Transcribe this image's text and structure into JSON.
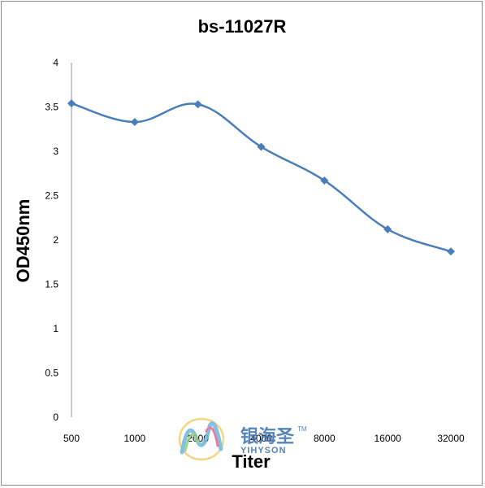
{
  "chart_data": {
    "type": "line",
    "title": "bs-11027R",
    "xlabel": "Titer",
    "ylabel": "OD450nm",
    "categories": [
      "500",
      "1000",
      "2000",
      "4000",
      "8000",
      "16000",
      "32000"
    ],
    "series": [
      {
        "values": [
          3.54,
          3.33,
          3.53,
          3.05,
          2.67,
          2.12,
          1.87
        ]
      }
    ],
    "ylim": [
      0,
      4
    ],
    "yticks": [
      "0",
      "0.5",
      "1",
      "1.5",
      "2",
      "2.5",
      "3",
      "3.5",
      "4"
    ],
    "grid": false,
    "marker": "diamond",
    "smooth": true,
    "colors": {
      "line": "#4a7ebb"
    }
  },
  "watermark": {
    "cn": "银海圣",
    "en": "YIHYSON",
    "tm": "TM"
  }
}
